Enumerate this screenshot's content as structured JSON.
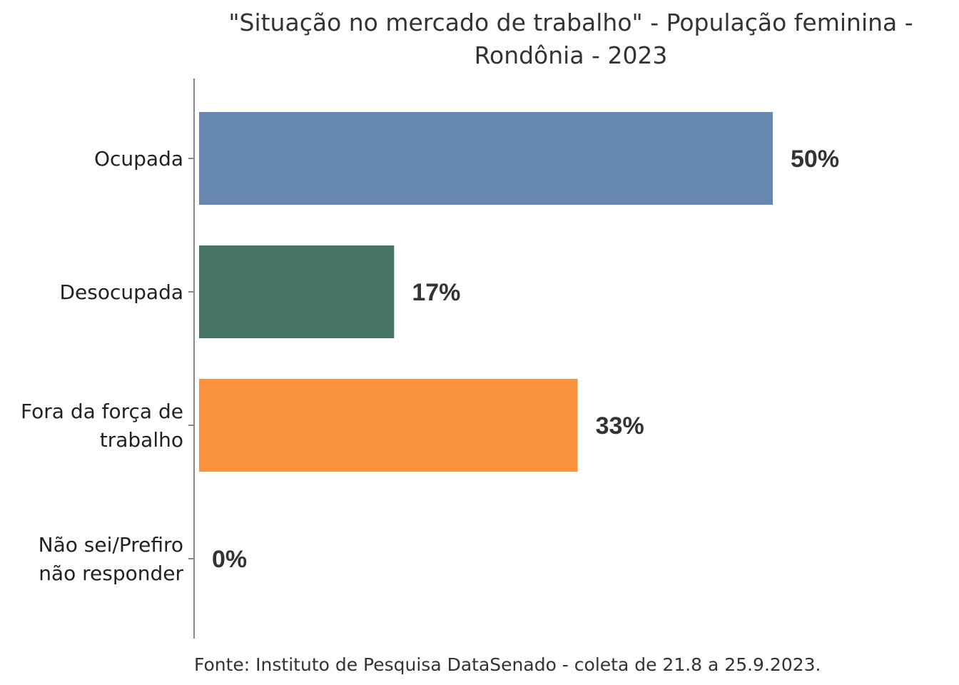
{
  "chart_data": {
    "type": "bar",
    "orientation": "horizontal",
    "title_lines": [
      "\"Situação no mercado de trabalho\" - População feminina -",
      "Rondônia - 2023"
    ],
    "categories": [
      [
        "Ocupada"
      ],
      [
        "Desocupada"
      ],
      [
        "Fora da força de",
        "trabalho"
      ],
      [
        "Não sei/Prefiro",
        "não responder"
      ]
    ],
    "values": [
      50,
      17,
      33,
      0
    ],
    "value_labels": [
      "50%",
      "17%",
      "33%",
      "0%"
    ],
    "unit": "%",
    "colors": [
      "#6688b0",
      "#467462",
      "#fa923e",
      "#999999"
    ],
    "xlim": [
      0,
      60
    ],
    "grid": false,
    "legend": "none"
  },
  "source": "Fonte: Instituto de Pesquisa DataSenado - coleta de 21.8 a 25.9.2023."
}
